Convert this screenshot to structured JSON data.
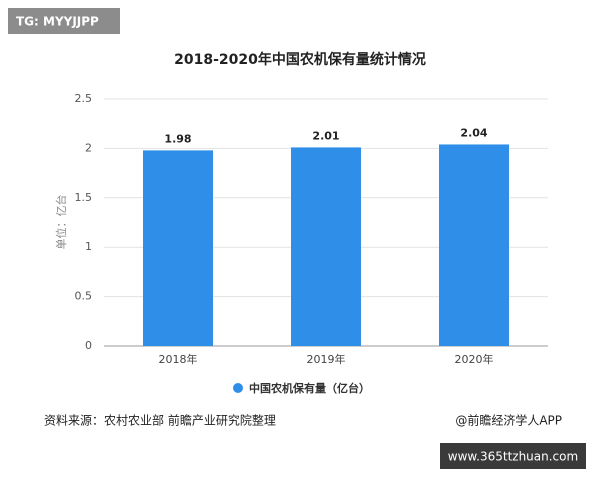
{
  "page": {
    "tag": "TG: MYYJJPP",
    "url": "www.365ttzhuan.com"
  },
  "chart_data": {
    "type": "bar",
    "title": "2018-2020年中国农机保有量统计情况",
    "y_label": "单位：亿台",
    "categories": [
      "2018年",
      "2019年",
      "2020年"
    ],
    "series": [
      {
        "name": "中国农机保有量（亿台）",
        "color": "#2f8fe8",
        "values": [
          1.98,
          2.01,
          2.04
        ]
      }
    ],
    "ylim": [
      0,
      2.5
    ],
    "yticks": [
      0,
      0.5,
      1,
      1.5,
      2,
      2.5
    ],
    "grid": true,
    "legend": "bottom",
    "source": "资料来源：农村农业部 前瞻产业研究院整理",
    "credit": "@前瞻经济学人APP"
  }
}
